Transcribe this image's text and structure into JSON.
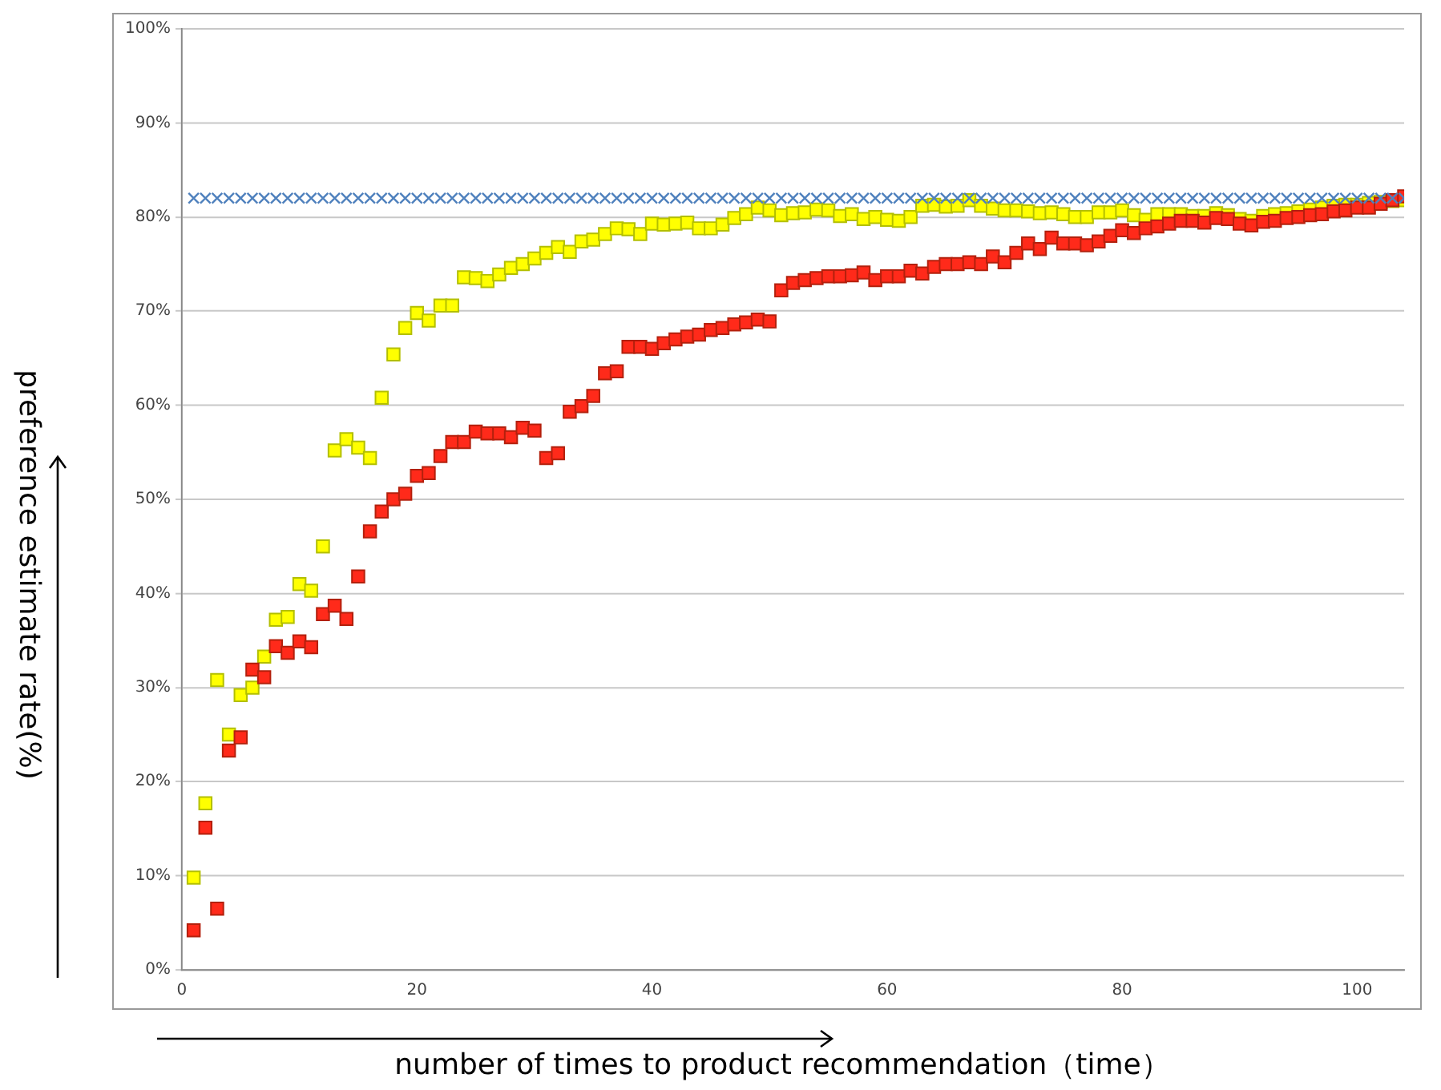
{
  "chart_data": {
    "type": "scatter",
    "xlabel": "number of times to product recommendation（time）",
    "ylabel": "preference estimate rate(%)",
    "x": [
      1,
      2,
      3,
      4,
      5,
      6,
      7,
      8,
      9,
      10,
      11,
      12,
      13,
      14,
      15,
      16,
      17,
      18,
      19,
      20,
      21,
      22,
      23,
      24,
      25,
      26,
      27,
      28,
      29,
      30,
      31,
      32,
      33,
      34,
      35,
      36,
      37,
      38,
      39,
      40,
      41,
      42,
      43,
      44,
      45,
      46,
      47,
      48,
      49,
      50,
      51,
      52,
      53,
      54,
      55,
      56,
      57,
      58,
      59,
      60,
      61,
      62,
      63,
      64,
      65,
      66,
      67,
      68,
      69,
      70,
      71,
      72,
      73,
      74,
      75,
      76,
      77,
      78,
      79,
      80,
      81,
      82,
      83,
      84,
      85,
      86,
      87,
      88,
      89,
      90,
      91,
      92,
      93,
      94,
      95,
      96,
      97,
      98,
      99,
      100,
      101,
      102,
      103,
      104
    ],
    "series": [
      {
        "color": "#4f81bd",
        "marker": "cross",
        "values": [
          82,
          82,
          82,
          82,
          82,
          82,
          82,
          82,
          82,
          82,
          82,
          82,
          82,
          82,
          82,
          82,
          82,
          82,
          82,
          82,
          82,
          82,
          82,
          82,
          82,
          82,
          82,
          82,
          82,
          82,
          82,
          82,
          82,
          82,
          82,
          82,
          82,
          82,
          82,
          82,
          82,
          82,
          82,
          82,
          82,
          82,
          82,
          82,
          82,
          82,
          82,
          82,
          82,
          82,
          82,
          82,
          82,
          82,
          82,
          82,
          82,
          82,
          82,
          82,
          82,
          82,
          82,
          82,
          82,
          82,
          82,
          82,
          82,
          82,
          82,
          82,
          82,
          82,
          82,
          82,
          82,
          82,
          82,
          82,
          82,
          82,
          82,
          82,
          82,
          82,
          82,
          82,
          82,
          82,
          82,
          82,
          82,
          82,
          82,
          82,
          82,
          82,
          82,
          82
        ]
      },
      {
        "color": "#ff2a1a",
        "marker": "square",
        "values": [
          4.2,
          15.1,
          6.5,
          23.3,
          24.7,
          31.9,
          31.1,
          34.4,
          33.7,
          34.9,
          34.3,
          37.8,
          38.7,
          37.3,
          41.8,
          46.6,
          48.7,
          50,
          50.6,
          52.5,
          52.8,
          54.6,
          56.1,
          56.1,
          57.2,
          57,
          57,
          56.6,
          57.6,
          57.3,
          54.4,
          54.9,
          59.3,
          59.9,
          61,
          63.4,
          63.6,
          66.2,
          66.2,
          66,
          66.6,
          67,
          67.3,
          67.5,
          68,
          68.2,
          68.6,
          68.8,
          69.1,
          68.9,
          72.2,
          73,
          73.3,
          73.5,
          73.7,
          73.7,
          73.8,
          74.1,
          73.3,
          73.7,
          73.7,
          74.3,
          74,
          74.7,
          75,
          75,
          75.2,
          75,
          75.8,
          75.2,
          76.2,
          77.2,
          76.6,
          77.8,
          77.2,
          77.2,
          77,
          77.4,
          78,
          78.6,
          78.3,
          78.8,
          79,
          79.3,
          79.6,
          79.6,
          79.4,
          79.9,
          79.8,
          79.3,
          79.1,
          79.5,
          79.6,
          79.9,
          80,
          80.2,
          80.3,
          80.6,
          80.7,
          81,
          81,
          81.4,
          81.8,
          82.2
        ]
      },
      {
        "color": "#ffff00",
        "marker": "square",
        "values": [
          9.8,
          17.7,
          30.8,
          25,
          29.2,
          30,
          33.3,
          37.2,
          37.5,
          41,
          40.3,
          45,
          55.2,
          56.4,
          55.5,
          54.4,
          60.8,
          65.4,
          68.2,
          69.8,
          69,
          70.6,
          70.6,
          73.6,
          73.5,
          73.2,
          73.9,
          74.6,
          75,
          75.6,
          76.2,
          76.8,
          76.3,
          77.4,
          77.6,
          78.2,
          78.8,
          78.7,
          78.2,
          79.3,
          79.2,
          79.3,
          79.4,
          78.8,
          78.8,
          79.2,
          79.9,
          80.3,
          81,
          80.7,
          80.2,
          80.4,
          80.5,
          80.8,
          80.7,
          80.1,
          80.3,
          79.8,
          80,
          79.7,
          79.6,
          80,
          81.2,
          81.3,
          81.1,
          81.2,
          81.8,
          81.2,
          80.9,
          80.7,
          80.7,
          80.6,
          80.4,
          80.5,
          80.3,
          80,
          80,
          80.5,
          80.5,
          80.7,
          80.2,
          79.7,
          80.3,
          80.3,
          80.3,
          80.1,
          80.1,
          80.4,
          80.2,
          79.8,
          79.6,
          80.1,
          80.3,
          80.4,
          80.6,
          80.8,
          81,
          81.2,
          81.3,
          81.3,
          81.5,
          81.6,
          81.7,
          81.8
        ]
      }
    ],
    "xlim": [
      0,
      104
    ],
    "xticks": [
      0,
      20,
      40,
      60,
      80,
      100
    ],
    "ylim": [
      0,
      100
    ],
    "yticks": [
      {
        "value": 0,
        "label": "0%"
      },
      {
        "value": 10,
        "label": "10%"
      },
      {
        "value": 20,
        "label": "20%"
      },
      {
        "value": 30,
        "label": "30%"
      },
      {
        "value": 40,
        "label": "40%"
      },
      {
        "value": 50,
        "label": "50%"
      },
      {
        "value": 60,
        "label": "60%"
      },
      {
        "value": 70,
        "label": "70%"
      },
      {
        "value": 80,
        "label": "80%"
      },
      {
        "value": 90,
        "label": "90%"
      },
      {
        "value": 100,
        "label": "100%"
      }
    ],
    "grid": "y",
    "legend": false
  }
}
